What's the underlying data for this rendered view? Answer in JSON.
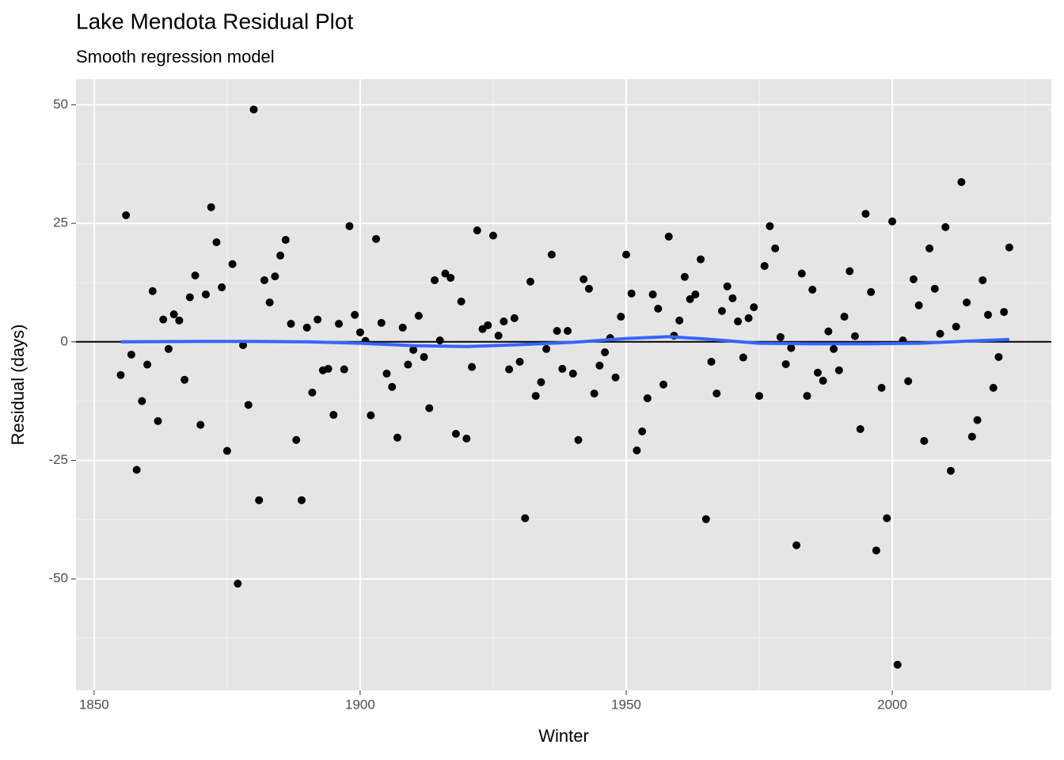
{
  "chart_data": {
    "type": "scatter",
    "title": "Lake Mendota Residual Plot",
    "subtitle": "Smooth regression model",
    "xlabel": "Winter",
    "ylabel": "Residual (days)",
    "xlim": [
      1846.6,
      2029.9
    ],
    "ylim": [
      -73.5,
      55.4
    ],
    "xticks": [
      1850,
      1900,
      1950,
      2000
    ],
    "yticks": [
      -50,
      -25,
      0,
      25,
      50
    ],
    "xminor": [
      1875,
      1925,
      1975,
      2025
    ],
    "yminor": [
      -62.5,
      -37.5,
      -12.5,
      12.5,
      37.5
    ],
    "grid": true,
    "hline": 0,
    "color": "#000000",
    "x": [
      1855,
      1856,
      1857,
      1858,
      1859,
      1860,
      1861,
      1862,
      1863,
      1864,
      1865,
      1866,
      1867,
      1868,
      1869,
      1870,
      1871,
      1872,
      1873,
      1874,
      1875,
      1876,
      1877,
      1878,
      1879,
      1880,
      1881,
      1882,
      1883,
      1884,
      1885,
      1886,
      1887,
      1888,
      1889,
      1890,
      1891,
      1892,
      1893,
      1894,
      1895,
      1896,
      1897,
      1898,
      1899,
      1900,
      1901,
      1902,
      1903,
      1904,
      1905,
      1906,
      1907,
      1908,
      1909,
      1910,
      1911,
      1912,
      1913,
      1914,
      1915,
      1916,
      1917,
      1918,
      1919,
      1920,
      1921,
      1922,
      1923,
      1924,
      1925,
      1926,
      1927,
      1928,
      1929,
      1930,
      1931,
      1932,
      1933,
      1934,
      1935,
      1936,
      1937,
      1938,
      1939,
      1940,
      1941,
      1942,
      1943,
      1944,
      1945,
      1946,
      1947,
      1948,
      1949,
      1950,
      1951,
      1952,
      1953,
      1954,
      1955,
      1956,
      1957,
      1958,
      1959,
      1960,
      1961,
      1962,
      1963,
      1964,
      1965,
      1966,
      1967,
      1968,
      1969,
      1970,
      1971,
      1972,
      1973,
      1974,
      1975,
      1976,
      1977,
      1978,
      1979,
      1980,
      1981,
      1982,
      1983,
      1984,
      1985,
      1986,
      1987,
      1988,
      1989,
      1990,
      1991,
      1992,
      1993,
      1994,
      1995,
      1996,
      1997,
      1998,
      1999,
      2000,
      2001,
      2002,
      2003,
      2004,
      2005,
      2006,
      2007,
      2008,
      2009,
      2010,
      2011,
      2012,
      2013,
      2014,
      2015,
      2016,
      2017,
      2018,
      2019,
      2020,
      2021,
      2022
    ],
    "values": [
      -7.0,
      26.7,
      -2.7,
      -27,
      -12.5,
      -4.8,
      10.7,
      -16.7,
      4.7,
      -1.5,
      5.8,
      4.5,
      -8,
      9.4,
      14,
      -17.5,
      10,
      28.4,
      21,
      11.5,
      -23,
      16.4,
      -51,
      -0.7,
      -13.3,
      49,
      -33.4,
      13,
      8.3,
      13.8,
      18.2,
      21.5,
      3.8,
      -20.7,
      -33.4,
      3,
      -10.7,
      4.7,
      -6,
      -5.7,
      -15.4,
      3.8,
      -5.8,
      24.4,
      5.7,
      2,
      0.2,
      -15.5,
      21.7,
      4,
      -6.7,
      -9.5,
      -20.2,
      3,
      -4.8,
      -1.7,
      5.5,
      -3.2,
      -14,
      13,
      0.3,
      14.4,
      13.5,
      -19.4,
      8.5,
      -20.4,
      -5.3,
      23.5,
      2.7,
      3.5,
      22.4,
      1.3,
      4.3,
      -5.8,
      5,
      -4.2,
      -37.2,
      12.7,
      -11.4,
      -8.5,
      -1.5,
      18.4,
      2.3,
      -5.7,
      2.3,
      -6.7,
      -20.7,
      13.2,
      11.2,
      -10.9,
      -5,
      -2.2,
      0.8,
      -7.5,
      5.3,
      18.4,
      10.2,
      -22.9,
      -18.9,
      -11.9,
      10,
      7,
      -9,
      22.2,
      1.3,
      4.5,
      13.7,
      9,
      10,
      17.4,
      -37.4,
      -4.2,
      -10.9,
      6.5,
      11.7,
      9.2,
      4.3,
      -3.3,
      5,
      7.3,
      -11.4,
      16,
      24.4,
      19.7,
      1,
      -4.7,
      -1.3,
      -42.9,
      14.4,
      -11.4,
      11,
      -6.5,
      -8.2,
      2.2,
      -1.5,
      -6,
      5.3,
      14.9,
      1.2,
      -18.4,
      27,
      10.5,
      -44,
      -9.7,
      -37.2,
      25.4,
      -68.1,
      0.3,
      -8.3,
      13.2,
      7.7,
      -20.9,
      19.7,
      11.2,
      1.7,
      24.2,
      -27.2,
      3.2,
      33.7,
      8.3,
      -20,
      -16.5,
      13,
      5.7,
      -9.7,
      -3.2,
      6.3,
      19.9
    ],
    "smooth": {
      "color": "#3366ff",
      "x": [
        1855,
        1870,
        1880,
        1890,
        1900,
        1910,
        1920,
        1930,
        1940,
        1950,
        1958,
        1965,
        1975,
        1985,
        1995,
        2005,
        2015,
        2022
      ],
      "values": [
        0,
        0.1,
        0.1,
        0,
        -0.3,
        -0.8,
        -1,
        -0.6,
        -0.1,
        0.7,
        1.1,
        0.6,
        -0.3,
        -0.4,
        -0.4,
        -0.3,
        0.2,
        0.5
      ]
    }
  }
}
